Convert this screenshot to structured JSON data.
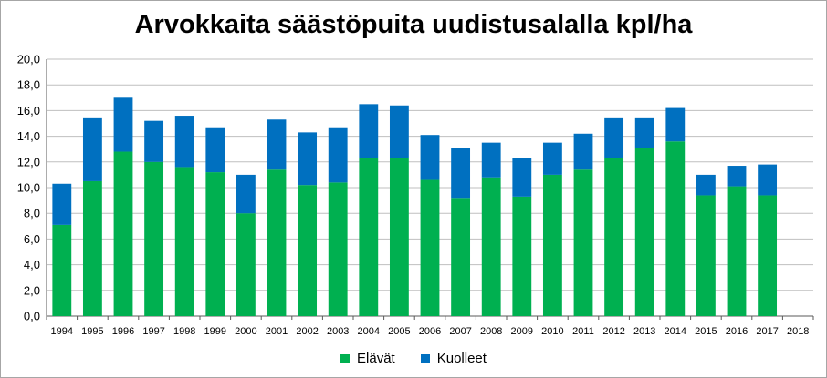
{
  "chart_data": {
    "type": "bar",
    "stacked": true,
    "title": "Arvokkaita säästöpuita uudistusalalla kpl/ha",
    "categories": [
      "1994",
      "1995",
      "1996",
      "1997",
      "1998",
      "1999",
      "2000",
      "2001",
      "2002",
      "2003",
      "2004",
      "2005",
      "2006",
      "2007",
      "2008",
      "2009",
      "2010",
      "2011",
      "2012",
      "2013",
      "2014",
      "2015",
      "2016",
      "2017",
      "2018"
    ],
    "series": [
      {
        "name": "Elävät",
        "color": "#00b050",
        "values": [
          7.1,
          10.5,
          12.8,
          12.0,
          11.6,
          11.2,
          8.0,
          11.4,
          10.2,
          10.4,
          12.3,
          12.3,
          10.6,
          9.2,
          10.8,
          9.3,
          11.0,
          11.4,
          12.3,
          13.1,
          13.6,
          9.4,
          10.1,
          9.4,
          null
        ]
      },
      {
        "name": "Kuolleet",
        "color": "#0070c0",
        "values": [
          3.2,
          4.9,
          4.2,
          3.2,
          4.0,
          3.5,
          3.0,
          3.9,
          4.1,
          4.3,
          4.2,
          4.1,
          3.5,
          3.9,
          2.7,
          3.0,
          2.5,
          2.8,
          3.1,
          2.3,
          2.6,
          1.6,
          1.6,
          2.4,
          null
        ]
      }
    ],
    "ylim": [
      0,
      20
    ],
    "yticks": [
      "0,0",
      "2,0",
      "4,0",
      "6,0",
      "8,0",
      "10,0",
      "12,0",
      "14,0",
      "16,0",
      "18,0",
      "20,0"
    ],
    "grid": true,
    "legend_position": "bottom"
  }
}
